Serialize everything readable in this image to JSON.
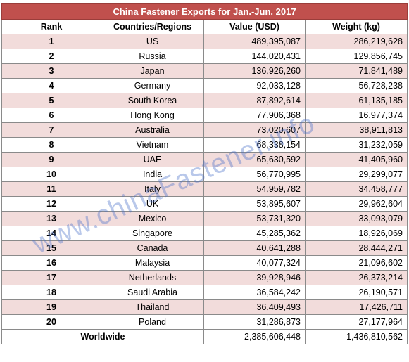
{
  "title": "China Fastener Exports for Jan.-Jun. 2017",
  "headers": [
    "Rank",
    "Countries/Regions",
    "Value (USD)",
    "Weight (kg)"
  ],
  "rows": [
    {
      "rank": "1",
      "country": "US",
      "value": "489,395,087",
      "weight": "286,219,628"
    },
    {
      "rank": "2",
      "country": "Russia",
      "value": "144,020,431",
      "weight": "129,856,745"
    },
    {
      "rank": "3",
      "country": "Japan",
      "value": "136,926,260",
      "weight": "71,841,489"
    },
    {
      "rank": "4",
      "country": "Germany",
      "value": "92,033,128",
      "weight": "56,728,238"
    },
    {
      "rank": "5",
      "country": "South Korea",
      "value": "87,892,614",
      "weight": "61,135,185"
    },
    {
      "rank": "6",
      "country": "Hong Kong",
      "value": "77,906,368",
      "weight": "16,977,374"
    },
    {
      "rank": "7",
      "country": "Australia",
      "value": "73,020,607",
      "weight": "38,911,813"
    },
    {
      "rank": "8",
      "country": "Vietnam",
      "value": "68,338,154",
      "weight": "31,232,059"
    },
    {
      "rank": "9",
      "country": "UAE",
      "value": "65,630,592",
      "weight": "41,405,960"
    },
    {
      "rank": "10",
      "country": "India",
      "value": "56,770,995",
      "weight": "29,299,077"
    },
    {
      "rank": "11",
      "country": "Italy",
      "value": "54,959,782",
      "weight": "34,458,777"
    },
    {
      "rank": "12",
      "country": "UK",
      "value": "53,895,607",
      "weight": "29,962,604"
    },
    {
      "rank": "13",
      "country": "Mexico",
      "value": "53,731,320",
      "weight": "33,093,079"
    },
    {
      "rank": "14",
      "country": "Singapore",
      "value": "45,285,362",
      "weight": "18,926,069"
    },
    {
      "rank": "15",
      "country": "Canada",
      "value": "40,641,288",
      "weight": "28,444,271"
    },
    {
      "rank": "16",
      "country": "Malaysia",
      "value": "40,077,324",
      "weight": "21,096,602"
    },
    {
      "rank": "17",
      "country": "Netherlands",
      "value": "39,928,946",
      "weight": "26,373,214"
    },
    {
      "rank": "18",
      "country": "Saudi Arabia",
      "value": "36,584,242",
      "weight": "26,190,571"
    },
    {
      "rank": "19",
      "country": "Thailand",
      "value": "36,409,493",
      "weight": "17,426,711"
    },
    {
      "rank": "20",
      "country": "Poland",
      "value": "31,286,873",
      "weight": "27,177,964"
    }
  ],
  "total": {
    "label": "Worldwide",
    "value": "2,385,606,448",
    "weight": "1,436,810,562"
  },
  "watermark": "www.chinaFastener.info",
  "colors": {
    "header_bg": "#c0504d",
    "stripe": "#f2dcdb",
    "watermark": "#466ec8"
  }
}
